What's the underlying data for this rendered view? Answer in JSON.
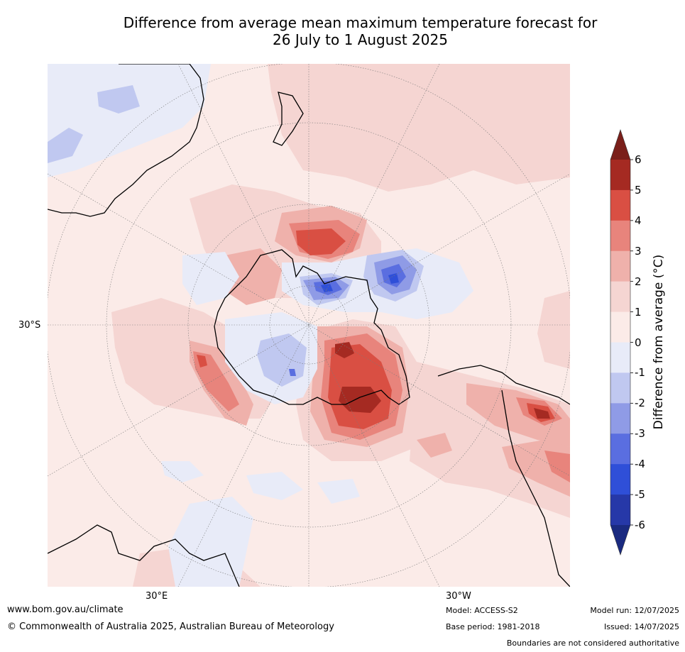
{
  "title_line1": "Difference from average mean maximum temperature forecast for",
  "title_line2": "26 July to 1 August 2025",
  "map": {
    "projection": "south-polar-stereographic",
    "lat_label": "30°S",
    "lon_labels": [
      "30°E",
      "30°W"
    ],
    "description_colors": {
      "ocean_base": "#fbebe8",
      "continent_outline": "#000000",
      "graticule": "#7a7a7a"
    }
  },
  "colorbar": {
    "label": "Difference from average (°C)",
    "ticks": [
      "6",
      "5",
      "4",
      "3",
      "2",
      "1",
      "0",
      "-1",
      "-2",
      "-3",
      "-4",
      "-5",
      "-6"
    ],
    "bins": [
      {
        "range": "above 6",
        "color": "#7a1f1a"
      },
      {
        "range": "5 to 6",
        "color": "#a52a22"
      },
      {
        "range": "4 to 5",
        "color": "#d94f43"
      },
      {
        "range": "3 to 4",
        "color": "#e8847c"
      },
      {
        "range": "2 to 3",
        "color": "#efb1ab"
      },
      {
        "range": "1 to 2",
        "color": "#f5d5d2"
      },
      {
        "range": "0 to 1",
        "color": "#fbebe8"
      },
      {
        "range": "-1 to 0",
        "color": "#e8ebf8"
      },
      {
        "range": "-2 to -1",
        "color": "#c0c8f0"
      },
      {
        "range": "-3 to -2",
        "color": "#8f9be6"
      },
      {
        "range": "-4 to -3",
        "color": "#5a6ee0"
      },
      {
        "range": "-5 to -4",
        "color": "#2f4fd8"
      },
      {
        "range": "-6 to -5",
        "color": "#2638a8"
      },
      {
        "range": "below -6",
        "color": "#1a2a80"
      }
    ]
  },
  "footer": {
    "website": "www.bom.gov.au/climate",
    "copyright": "© Commonwealth of Australia 2025, Australian Bureau of Meteorology",
    "model": "Model: ACCESS-S2",
    "base_period": "Base period: 1981-2018",
    "model_run": "Model run: 12/07/2025",
    "issued": "Issued: 14/07/2025",
    "disclaimer": "Boundaries are not considered authoritative"
  }
}
